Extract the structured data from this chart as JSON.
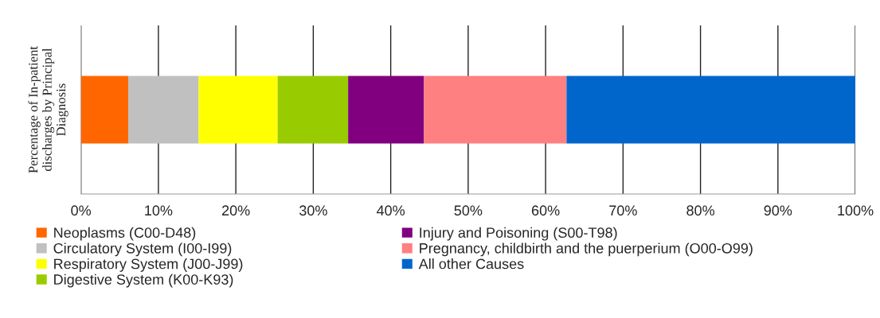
{
  "chart_data": {
    "type": "bar",
    "orientation": "horizontal",
    "stacked": true,
    "ylabel": "Percentage of In-patient\ndischarges by Principal\nDiagnosis",
    "categories": [
      null
    ],
    "series": [
      {
        "name": "Neoplasms (C00-D48)",
        "color": "#ff6600",
        "values": [
          6.1
        ]
      },
      {
        "name": "Circulatory System (I00-I99)",
        "color": "#c0c0c0",
        "values": [
          9.1
        ]
      },
      {
        "name": "Respiratory System (J00-J99)",
        "color": "#ffff00",
        "values": [
          10.2
        ]
      },
      {
        "name": "Digestive System (K00-K93)",
        "color": "#99cc00",
        "values": [
          9.1
        ]
      },
      {
        "name": "Injury and Poisoning (S00-T98)",
        "color": "#800080",
        "values": [
          9.8
        ]
      },
      {
        "name": "Pregnancy, childbirth and the puerperium (O00-O99)",
        "color": "#ff8080",
        "values": [
          18.4
        ]
      },
      {
        "name": "All other Causes",
        "color": "#0066cc",
        "values": [
          37.3
        ]
      }
    ],
    "xlim": [
      0,
      100
    ],
    "xticks": [
      {
        "value": 0,
        "label": "0%"
      },
      {
        "value": 10,
        "label": "10%"
      },
      {
        "value": 20,
        "label": "20%"
      },
      {
        "value": 30,
        "label": "30%"
      },
      {
        "value": 40,
        "label": "40%"
      },
      {
        "value": 50,
        "label": "50%"
      },
      {
        "value": 60,
        "label": "60%"
      },
      {
        "value": 70,
        "label": "70%"
      },
      {
        "value": 80,
        "label": "80%"
      },
      {
        "value": 90,
        "label": "90%"
      },
      {
        "value": 100,
        "label": "100%"
      }
    ],
    "grid": "x",
    "legend": "bottom"
  }
}
